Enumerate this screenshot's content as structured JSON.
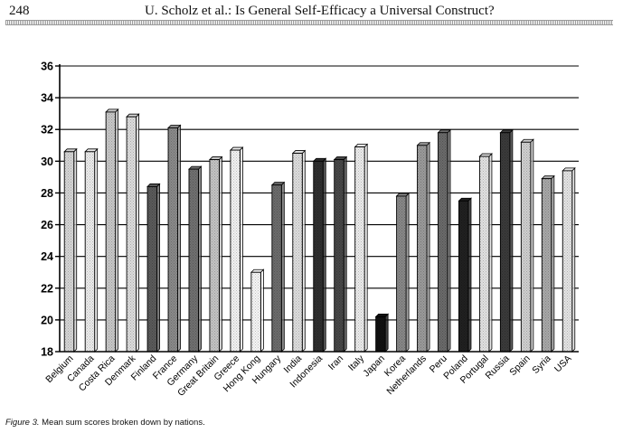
{
  "header": {
    "page_number": "248",
    "running_head": "U. Scholz et al.: Is General Self-Efficacy a Universal Construct?"
  },
  "caption": {
    "label": "Figure 3.",
    "text": " Mean sum scores broken down by nations."
  },
  "chart_data": {
    "type": "bar",
    "title": "",
    "xlabel": "",
    "ylabel": "",
    "ylim": [
      18,
      36
    ],
    "yticks": [
      18,
      20,
      22,
      24,
      26,
      28,
      30,
      32,
      34,
      36
    ],
    "grid": true,
    "categories": [
      "Belgium",
      "Canada",
      "Costa Rica",
      "Denmark",
      "Finland",
      "France",
      "Germany",
      "Great Britain",
      "Greece",
      "Hong Kong",
      "Hungary",
      "India",
      "Indonesia",
      "Iran",
      "Italy",
      "Japan",
      "Korea",
      "Netherlands",
      "Peru",
      "Poland",
      "Portugal",
      "Russia",
      "Spain",
      "Syria",
      "USA"
    ],
    "values": [
      30.6,
      30.6,
      33.1,
      32.8,
      28.4,
      32.1,
      29.5,
      30.1,
      30.7,
      23.0,
      28.5,
      30.5,
      30.0,
      30.1,
      30.9,
      20.2,
      27.8,
      31.0,
      31.8,
      27.5,
      30.3,
      31.8,
      31.2,
      28.9,
      29.4
    ],
    "bar_fills": [
      "#d6d6d6",
      "#ececec",
      "#c8c8c8",
      "#dcdcdc",
      "#5a5a5a",
      "#8a8a8a",
      "#707070",
      "#c4c4c4",
      "#f2f2f2",
      "#f6f6f6",
      "#6c6c6c",
      "#dedede",
      "#2e2e2e",
      "#474747",
      "#ececec",
      "#111111",
      "#888888",
      "#9a9a9a",
      "#6a6a6a",
      "#202020",
      "#e2e2e2",
      "#3a3a3a",
      "#d0d0d0",
      "#a8a8a8",
      "#e4e4e4"
    ]
  }
}
